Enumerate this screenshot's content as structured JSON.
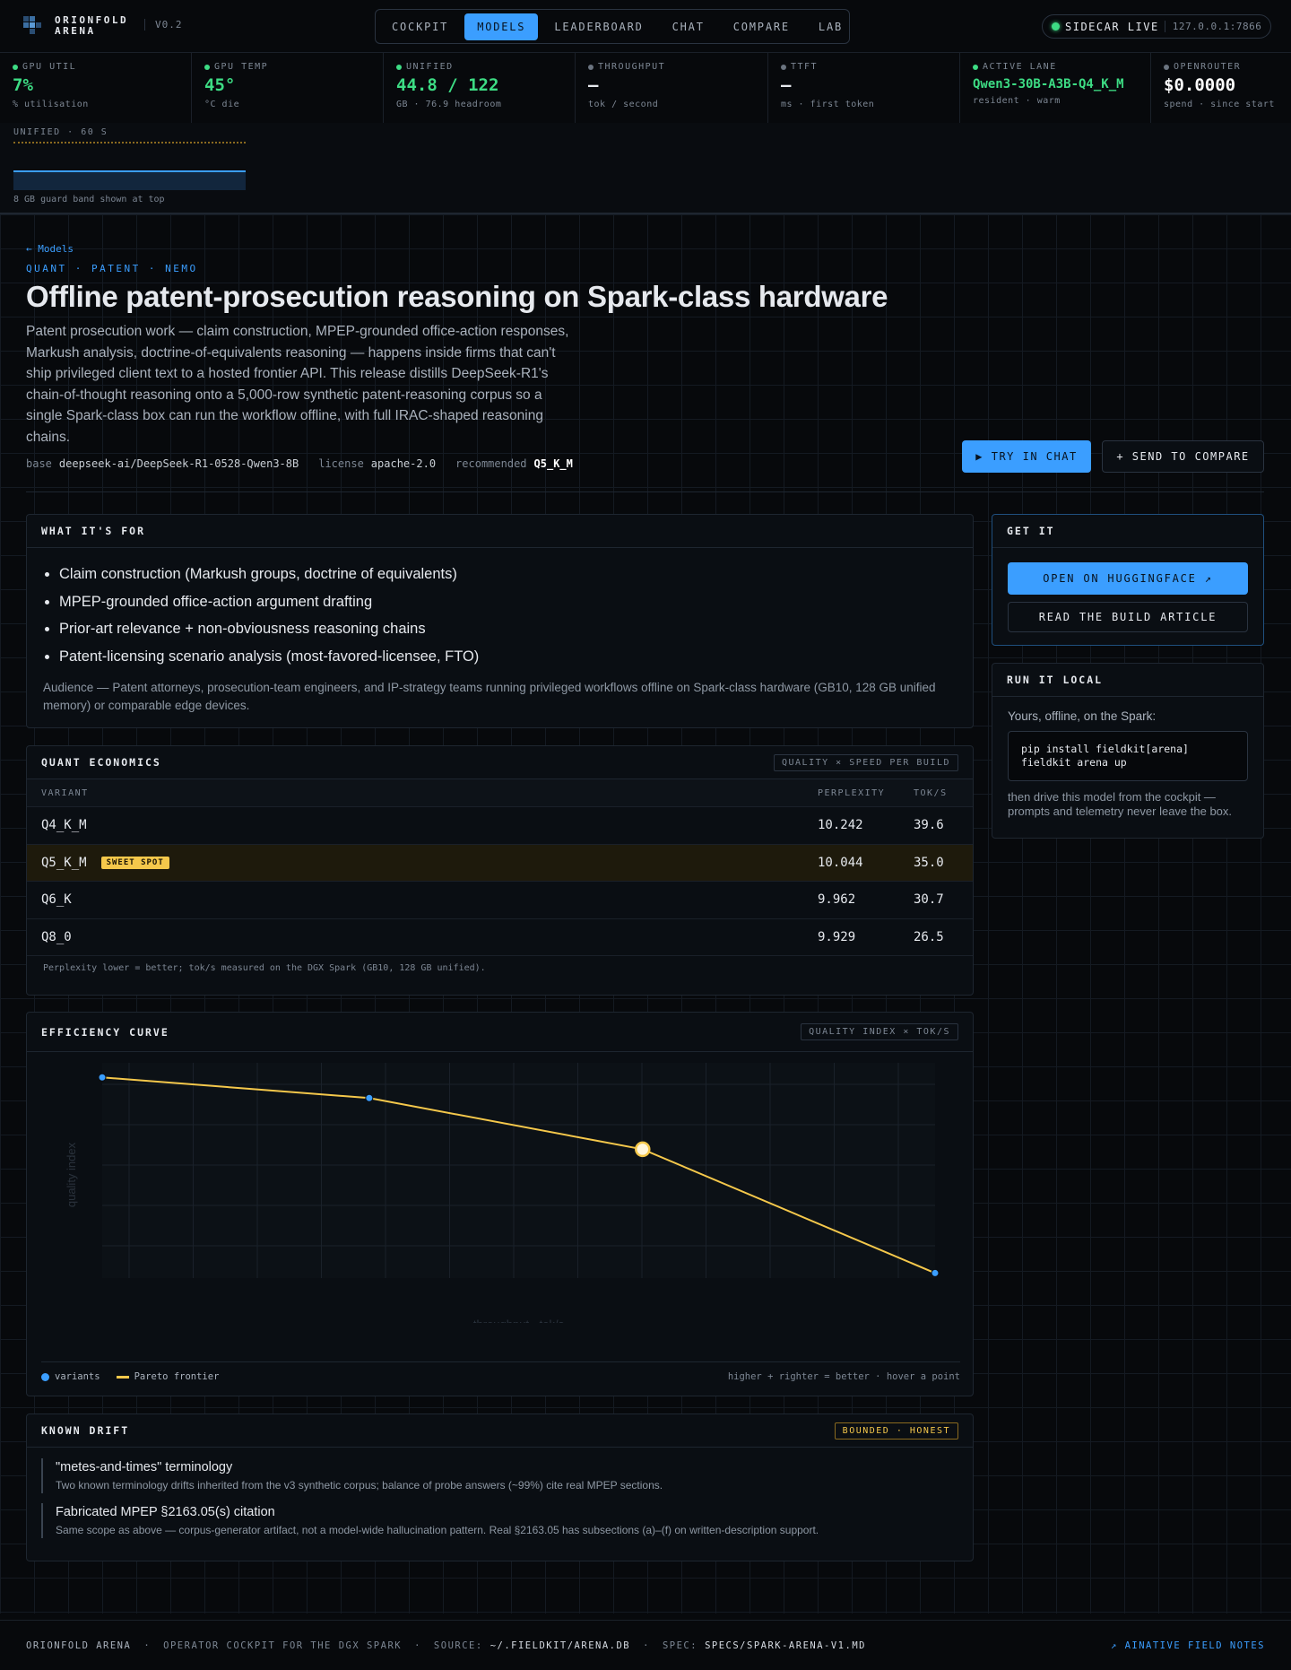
{
  "nav": {
    "brand_top": "ORIONFOLD",
    "brand_bottom": "ARENA",
    "version": "V0.2",
    "tabs": [
      "COCKPIT",
      "MODELS",
      "LEADERBOARD",
      "CHAT",
      "COMPARE",
      "LAB"
    ],
    "active_tab": 1,
    "status": "SIDECAR LIVE",
    "address": "127.0.0.1:7866"
  },
  "stats": [
    {
      "label": "GPU UTIL",
      "value": "7%",
      "sub": "% utilisation",
      "dot": "#3ddc84",
      "color": "#3ddc84"
    },
    {
      "label": "GPU TEMP",
      "value": "45°",
      "sub": "°C die",
      "dot": "#3ddc84",
      "color": "#3ddc84"
    },
    {
      "label": "UNIFIED",
      "value": "44.8 / 122",
      "sub": "GB · 76.9 headroom",
      "dot": "#3ddc84",
      "color": "#3ddc84"
    },
    {
      "label": "THROUGHPUT",
      "value": "—",
      "sub": "tok / second",
      "dot": "#6b7480",
      "color": "#e6e9ee"
    },
    {
      "label": "TTFT",
      "value": "—",
      "sub": "ms · first token",
      "dot": "#6b7480",
      "color": "#e6e9ee"
    },
    {
      "label": "ACTIVE LANE",
      "value": "Qwen3-30B-A3B-Q4_K_M",
      "sub": "resident · warm",
      "dot": "#3ddc84",
      "color": "#3ddc84"
    },
    {
      "label": "OPENROUTER",
      "value": "$0.0000",
      "sub": "spend · since start",
      "dot": "#6b7480",
      "color": "#ffffff"
    }
  ],
  "unified_panel": {
    "label": "UNIFIED · 60 S",
    "note": "8 GB guard band shown at top"
  },
  "model": {
    "back": "← Models",
    "tags": "QUANT · PATENT · NEMO",
    "title": "Offline patent-prosecution reasoning on Spark-class hardware",
    "description": "Patent prosecution work — claim construction, MPEP-grounded office-action responses, Markush analysis, doctrine-of-equivalents reasoning — happens inside firms that can't ship privileged client text to a hosted frontier API. This release distills DeepSeek-R1's chain-of-thought reasoning onto a 5,000-row synthetic patent-reasoning corpus so a single Spark-class box can run the workflow offline, with full IRAC-shaped reasoning chains.",
    "meta": [
      {
        "key": "base",
        "value": "deepseek-ai/DeepSeek-R1-0528-Qwen3-8B"
      },
      {
        "key": "license",
        "value": "apache-2.0"
      },
      {
        "key": "recommended",
        "value": "Q5_K_M"
      }
    ],
    "actions": [
      "▶ TRY IN CHAT",
      "+ SEND TO COMPARE"
    ]
  },
  "purpose": {
    "title": "WHAT IT'S FOR",
    "items": [
      "Claim construction (Markush groups, doctrine of equivalents)",
      "MPEP-grounded office-action argument drafting",
      "Prior-art relevance + non-obviousness reasoning chains",
      "Patent-licensing scenario analysis (most-favored-licensee, FTO)"
    ],
    "audience_label": "Audience —",
    "audience": "Patent attorneys, prosecution-team engineers, and IP-strategy teams running privileged workflows offline on Spark-class hardware (GB10, 128 GB unified memory) or comparable edge devices."
  },
  "quant": {
    "title": "QUANT ECONOMICS",
    "badge": "QUALITY × SPEED PER BUILD",
    "columns": [
      "VARIANT",
      "PERPLEXITY",
      "TOK/S"
    ],
    "rows": [
      [
        "Q4_K_M",
        "10.242",
        "39.6"
      ],
      [
        "Q5_K_M",
        "10.044",
        "35.0"
      ],
      [
        "Q6_K",
        "9.962",
        "30.7"
      ],
      [
        "Q8_0",
        "9.929",
        "26.5"
      ]
    ],
    "sweet_spot_row": 1,
    "sweet_spot_label": "SWEET SPOT",
    "note": "Perplexity lower = better; tok/s measured on the DGX Spark (GB10, 128 GB unified)."
  },
  "efficiency": {
    "title": "EFFICIENCY CURVE",
    "badge": "QUALITY INDEX × TOK/S",
    "note": "higher + righter = better · hover a point",
    "chart_data": {
      "type": "line",
      "x_label": "throughput · tok/s",
      "y_label": "quality index",
      "x": [
        26.5,
        30.7,
        35.0,
        39.6
      ],
      "xlim": [
        26.5,
        39.6
      ],
      "ylim": [
        10.25,
        9.92
      ],
      "highlight_index": 2,
      "series": [
        {
          "name": "variants",
          "color": "#3b9eff",
          "values": [
            9.929,
            9.962,
            10.044,
            10.242
          ]
        },
        {
          "name": "Pareto frontier",
          "color": "#f5c84b",
          "values": [
            9.929,
            9.962,
            10.044,
            10.242
          ]
        }
      ]
    }
  },
  "drift": {
    "title": "KNOWN DRIFT",
    "badge": "BOUNDED · HONEST",
    "items": [
      {
        "title": "\"metes-and-times\" terminology",
        "text": "Two known terminology drifts inherited from the v3 synthetic corpus; balance of probe answers (~99%) cite real MPEP sections."
      },
      {
        "title": "Fabricated MPEP §2163.05(s) citation",
        "text": "Same scope as above — corpus-generator artifact, not a model-wide hallucination pattern. Real §2163.05 has subsections (a)–(f) on written-description support."
      }
    ]
  },
  "get_it": {
    "title": "GET IT",
    "primary": "OPEN ON HUGGINGFACE ↗",
    "secondary": "READ THE BUILD ARTICLE"
  },
  "run_local": {
    "title": "RUN IT LOCAL",
    "intro": "Yours, offline, on the Spark:",
    "code": [
      "pip install fieldkit[arena]",
      "fieldkit arena up"
    ],
    "outro": "then drive this model from the cockpit — prompts and telemetry never leave the box."
  },
  "footer": {
    "brand": "ORIONFOLD ARENA",
    "tagline": "OPERATOR COCKPIT FOR THE DGX SPARK",
    "source_label": "SOURCE:",
    "source": "~/.FIELDKIT/ARENA.DB",
    "spec_label": "SPEC:",
    "spec": "SPECS/SPARK-ARENA-V1.MD",
    "link": "↗ AINATIVE FIELD NOTES"
  }
}
